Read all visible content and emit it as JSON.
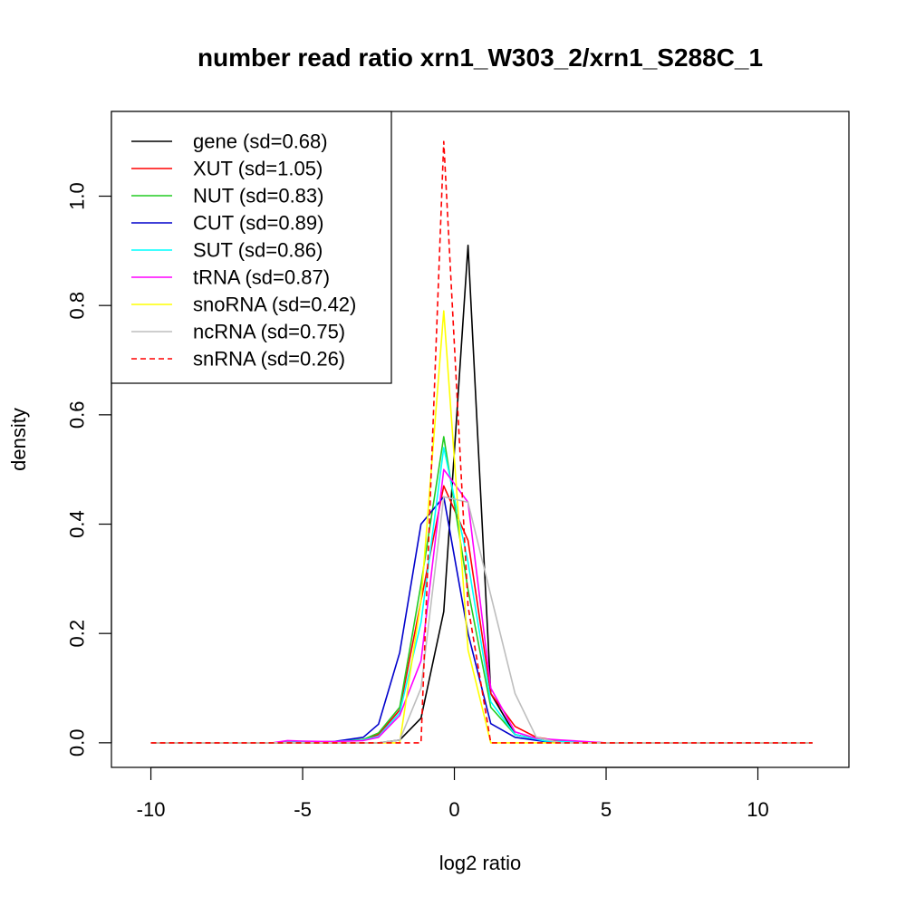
{
  "chart_data": {
    "type": "line",
    "title": "number read ratio xrn1_W303_2/xrn1_S288C_1",
    "xlabel": "log2 ratio",
    "ylabel": "density",
    "xlim": [
      -11.3,
      13
    ],
    "ylim": [
      -0.045,
      1.155
    ],
    "x_ticks": [
      -10,
      -5,
      0,
      5,
      10
    ],
    "y_ticks": [
      0.0,
      0.2,
      0.4,
      0.6,
      0.8,
      1.0
    ],
    "x_tick_labels": [
      "-10",
      "-5",
      "0",
      "5",
      "10"
    ],
    "y_tick_labels": [
      "0.0",
      "0.2",
      "0.4",
      "0.6",
      "0.8",
      "1.0"
    ],
    "legend_position": "top-left",
    "grid": false,
    "series": [
      {
        "name": "gene (sd=0.68)",
        "color": "#000000",
        "dash": "solid",
        "points": [
          [
            -10,
            0
          ],
          [
            -6,
            0
          ],
          [
            -3,
            0
          ],
          [
            -2.5,
            0
          ],
          [
            -1.8,
            0.005
          ],
          [
            -1.1,
            0.045
          ],
          [
            -0.35,
            0.24
          ],
          [
            0.45,
            0.91
          ],
          [
            1.2,
            0.09
          ],
          [
            2,
            0.015
          ],
          [
            3,
            0.003
          ],
          [
            5,
            0
          ],
          [
            11.8,
            0
          ]
        ]
      },
      {
        "name": "XUT (sd=1.05)",
        "color": "#ff0000",
        "dash": "solid",
        "points": [
          [
            -10,
            0
          ],
          [
            -6,
            0
          ],
          [
            -4,
            0.002
          ],
          [
            -3,
            0.006
          ],
          [
            -2.5,
            0.015
          ],
          [
            -1.8,
            0.06
          ],
          [
            -1.1,
            0.26
          ],
          [
            -0.35,
            0.47
          ],
          [
            0.45,
            0.37
          ],
          [
            1.2,
            0.09
          ],
          [
            2,
            0.03
          ],
          [
            2.7,
            0.01
          ],
          [
            3.5,
            0.003
          ],
          [
            5,
            0
          ],
          [
            11.8,
            0
          ]
        ]
      },
      {
        "name": "NUT (sd=0.83)",
        "color": "#22cc22",
        "dash": "solid",
        "points": [
          [
            -10,
            0
          ],
          [
            -6,
            0
          ],
          [
            -4,
            0.002
          ],
          [
            -3,
            0.006
          ],
          [
            -2.5,
            0.018
          ],
          [
            -1.8,
            0.065
          ],
          [
            -1.1,
            0.29
          ],
          [
            -0.35,
            0.56
          ],
          [
            0.45,
            0.28
          ],
          [
            1.2,
            0.065
          ],
          [
            2,
            0.015
          ],
          [
            3,
            0.003
          ],
          [
            5,
            0
          ],
          [
            11.8,
            0
          ]
        ]
      },
      {
        "name": "CUT (sd=0.89)",
        "color": "#0000cc",
        "dash": "solid",
        "points": [
          [
            -10,
            0
          ],
          [
            -6,
            0
          ],
          [
            -4,
            0.002
          ],
          [
            -3,
            0.01
          ],
          [
            -2.5,
            0.034
          ],
          [
            -1.8,
            0.165
          ],
          [
            -1.1,
            0.4
          ],
          [
            -0.35,
            0.45
          ],
          [
            0.45,
            0.2
          ],
          [
            1.2,
            0.035
          ],
          [
            2,
            0.01
          ],
          [
            3,
            0.002
          ],
          [
            5,
            0
          ],
          [
            11.8,
            0
          ]
        ]
      },
      {
        "name": "SUT (sd=0.86)",
        "color": "#00ffff",
        "dash": "solid",
        "points": [
          [
            -10,
            0
          ],
          [
            -6,
            0
          ],
          [
            -4,
            0.002
          ],
          [
            -3,
            0.005
          ],
          [
            -2.5,
            0.012
          ],
          [
            -1.8,
            0.055
          ],
          [
            -1.1,
            0.22
          ],
          [
            -0.35,
            0.54
          ],
          [
            0.45,
            0.33
          ],
          [
            1.2,
            0.075
          ],
          [
            2,
            0.015
          ],
          [
            3,
            0.003
          ],
          [
            5,
            0
          ],
          [
            11.8,
            0
          ]
        ]
      },
      {
        "name": "tRNA (sd=0.87)",
        "color": "#ff00ff",
        "dash": "solid",
        "points": [
          [
            -10,
            0
          ],
          [
            -6,
            0
          ],
          [
            -5.5,
            0.004
          ],
          [
            -5,
            0.003
          ],
          [
            -4,
            0.002
          ],
          [
            -3,
            0.004
          ],
          [
            -2.5,
            0.01
          ],
          [
            -1.8,
            0.05
          ],
          [
            -1.1,
            0.15
          ],
          [
            -0.35,
            0.5
          ],
          [
            0.45,
            0.44
          ],
          [
            1.2,
            0.1
          ],
          [
            2,
            0.02
          ],
          [
            2.7,
            0.008
          ],
          [
            3.5,
            0.005
          ],
          [
            5,
            0
          ],
          [
            11.8,
            0
          ]
        ]
      },
      {
        "name": "snoRNA (sd=0.42)",
        "color": "#ffff00",
        "dash": "solid",
        "points": [
          [
            -10,
            0
          ],
          [
            -2.5,
            0
          ],
          [
            -1.8,
            0
          ],
          [
            -1.1,
            0.26
          ],
          [
            -0.35,
            0.79
          ],
          [
            0.45,
            0.17
          ],
          [
            1.2,
            0
          ],
          [
            5,
            0
          ],
          [
            11.8,
            0
          ]
        ]
      },
      {
        "name": "ncRNA (sd=0.75)",
        "color": "#bebebe",
        "dash": "solid",
        "points": [
          [
            -10,
            0
          ],
          [
            -3,
            0
          ],
          [
            -2.5,
            0
          ],
          [
            -1.8,
            0.005
          ],
          [
            -1.1,
            0.1
          ],
          [
            -0.35,
            0.45
          ],
          [
            0.45,
            0.44
          ],
          [
            1.2,
            0.27
          ],
          [
            2,
            0.09
          ],
          [
            2.7,
            0.01
          ],
          [
            3.5,
            0
          ],
          [
            11.8,
            0
          ]
        ]
      },
      {
        "name": "snRNA (sd=0.26)",
        "color": "#ff0000",
        "dash": "dashed",
        "points": [
          [
            -10,
            0
          ],
          [
            -1.1,
            0
          ],
          [
            -0.35,
            1.1
          ],
          [
            0.45,
            0.25
          ],
          [
            1.2,
            0
          ],
          [
            11.8,
            0
          ]
        ]
      }
    ]
  }
}
